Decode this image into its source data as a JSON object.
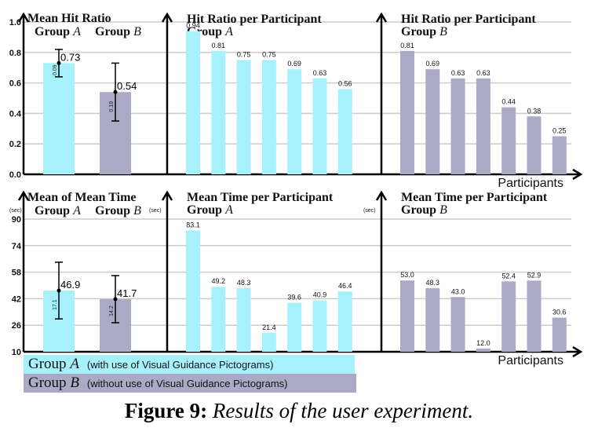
{
  "chart_data": [
    {
      "type": "bar",
      "title": "Mean Hit Ratio",
      "series": [
        {
          "name": "Group A",
          "values": [
            0.73
          ],
          "error": 0.09,
          "error_label": "0.09"
        },
        {
          "name": "Group B",
          "values": [
            0.54
          ],
          "error": 0.19,
          "error_label": "0.19"
        }
      ],
      "ylim": [
        0,
        1.0
      ],
      "yticks": [
        "0.0",
        "0.2",
        "0.4",
        "0.6",
        "0.8",
        "1.0"
      ],
      "grid": true
    },
    {
      "type": "bar",
      "title": "Hit Ratio per Participant",
      "subtitle": "Group A",
      "values": [
        0.94,
        0.81,
        0.75,
        0.75,
        0.69,
        0.63,
        0.56
      ],
      "labels": [
        "0.94",
        "0.81",
        "0.75",
        "0.75",
        "0.69",
        "0.63",
        "0.56"
      ],
      "ylim": [
        0,
        1.0
      ]
    },
    {
      "type": "bar",
      "title": "Hit Ratio per Participant",
      "subtitle": "Group B",
      "values": [
        0.81,
        0.69,
        0.63,
        0.63,
        0.44,
        0.38,
        0.25
      ],
      "labels": [
        "0.81",
        "0.69",
        "0.63",
        "0.63",
        "0.44",
        "0.38",
        "0.25"
      ],
      "xlabel": "Participants",
      "ylim": [
        0,
        1.0
      ]
    },
    {
      "type": "bar",
      "title": "Mean of Mean Time",
      "unit": "(sec)",
      "series": [
        {
          "name": "Group A",
          "values": [
            46.9
          ],
          "error": 17.1,
          "error_label": "17.1"
        },
        {
          "name": "Group B",
          "values": [
            41.7
          ],
          "error": 14.2,
          "error_label": "14.2"
        }
      ],
      "ylim": [
        10,
        90
      ],
      "yticks": [
        "10",
        "26",
        "42",
        "58",
        "74",
        "90"
      ],
      "grid": true
    },
    {
      "type": "bar",
      "title": "Mean Time per Participant",
      "subtitle": "Group A",
      "unit": "(sec)",
      "values": [
        83.1,
        49.2,
        48.3,
        21.4,
        39.6,
        40.9,
        46.4
      ],
      "labels": [
        "83.1",
        "49.2",
        "48.3",
        "21.4",
        "39.6",
        "40.9",
        "46.4"
      ],
      "ylim": [
        10,
        90
      ]
    },
    {
      "type": "bar",
      "title": "Mean Time per Participant",
      "subtitle": "Group B",
      "unit": "(sec)",
      "values": [
        53.0,
        48.3,
        43.0,
        12.0,
        52.4,
        52.9,
        30.6
      ],
      "labels": [
        "53.0",
        "48.3",
        "43.0",
        "12.0",
        "52.4",
        "52.9",
        "30.6"
      ],
      "xlabel": "Participants",
      "ylim": [
        10,
        90
      ]
    }
  ],
  "colors": {
    "group_a": "#a7f1fd",
    "group_b": "#aaaac7",
    "grid": "#cccccc",
    "axis": "#000000"
  },
  "legend": {
    "a_name": "Group",
    "a_letter": "A",
    "a_desc": "(with use of Visual Guidance Pictograms)",
    "b_name": "Group",
    "b_letter": "B",
    "b_desc": "(without use of Visual Guidance Pictograms)"
  },
  "caption": {
    "label": "Figure 9:",
    "text": "Results of the user experiment."
  }
}
